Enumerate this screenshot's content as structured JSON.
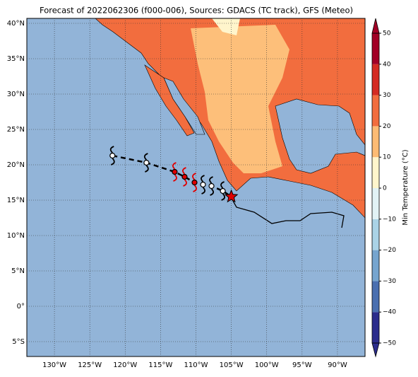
{
  "map_data": {
    "title": "Forecast of 2022062306 (f000-006), Sources: GDACS (TC track), GFS (Meteo)",
    "lonlim": [
      -133.9,
      -86.1
    ],
    "latlim": [
      -7.1,
      40.7
    ],
    "lonticks": [
      {
        "value": -130,
        "label": "130°W"
      },
      {
        "value": -125,
        "label": "125°W"
      },
      {
        "value": -120,
        "label": "120°W"
      },
      {
        "value": -115,
        "label": "115°W"
      },
      {
        "value": -110,
        "label": "110°W"
      },
      {
        "value": -105,
        "label": "105°W"
      },
      {
        "value": -100,
        "label": "100°W"
      },
      {
        "value": -95,
        "label": "95°W"
      },
      {
        "value": -90,
        "label": "90°W"
      }
    ],
    "latticks": [
      {
        "value": -5,
        "label": "5°S"
      },
      {
        "value": 0,
        "label": "0°"
      },
      {
        "value": 5,
        "label": "5°N"
      },
      {
        "value": 10,
        "label": "10°N"
      },
      {
        "value": 15,
        "label": "15°N"
      },
      {
        "value": 20,
        "label": "20°N"
      },
      {
        "value": 25,
        "label": "25°N"
      },
      {
        "value": 30,
        "label": "30°N"
      },
      {
        "value": 35,
        "label": "35°N"
      },
      {
        "value": 40,
        "label": "40°N"
      }
    ],
    "grid": true,
    "track": [
      {
        "lon": -121.8,
        "lat": 21.3,
        "color": "#ffffff"
      },
      {
        "lon": -117.0,
        "lat": 20.3,
        "color": "#ffffff"
      },
      {
        "lon": -113.0,
        "lat": 19.0,
        "color": "#e00000"
      },
      {
        "lon": -111.6,
        "lat": 18.3,
        "color": "#e00000"
      },
      {
        "lon": -110.2,
        "lat": 17.5,
        "color": "#e00000"
      },
      {
        "lon": -109.0,
        "lat": 17.2,
        "color": "#ffffff"
      },
      {
        "lon": -107.8,
        "lat": 17.0,
        "color": "#ffffff"
      },
      {
        "lon": -106.2,
        "lat": 16.3,
        "color": "#ffffff"
      },
      {
        "lon": -105.0,
        "lat": 15.5,
        "color": "#e00000"
      }
    ],
    "colorbar": {
      "label": "Min Temperature (°C)",
      "lim": [
        -50,
        50
      ],
      "ticks": [
        {
          "value": -50,
          "label": "−50"
        },
        {
          "value": -40,
          "label": "−40"
        },
        {
          "value": -30,
          "label": "−30"
        },
        {
          "value": -20,
          "label": "−20"
        },
        {
          "value": -10,
          "label": "−10"
        },
        0,
        10,
        20,
        30,
        40,
        50
      ],
      "colors": [
        "#2b2c8c",
        "#4a6fb0",
        "#76a5cf",
        "#aad3e6",
        "#e2f2f5",
        "#fff5cc",
        "#fdbb74",
        "#f26d3e",
        "#d42b22",
        "#a20026"
      ]
    }
  }
}
